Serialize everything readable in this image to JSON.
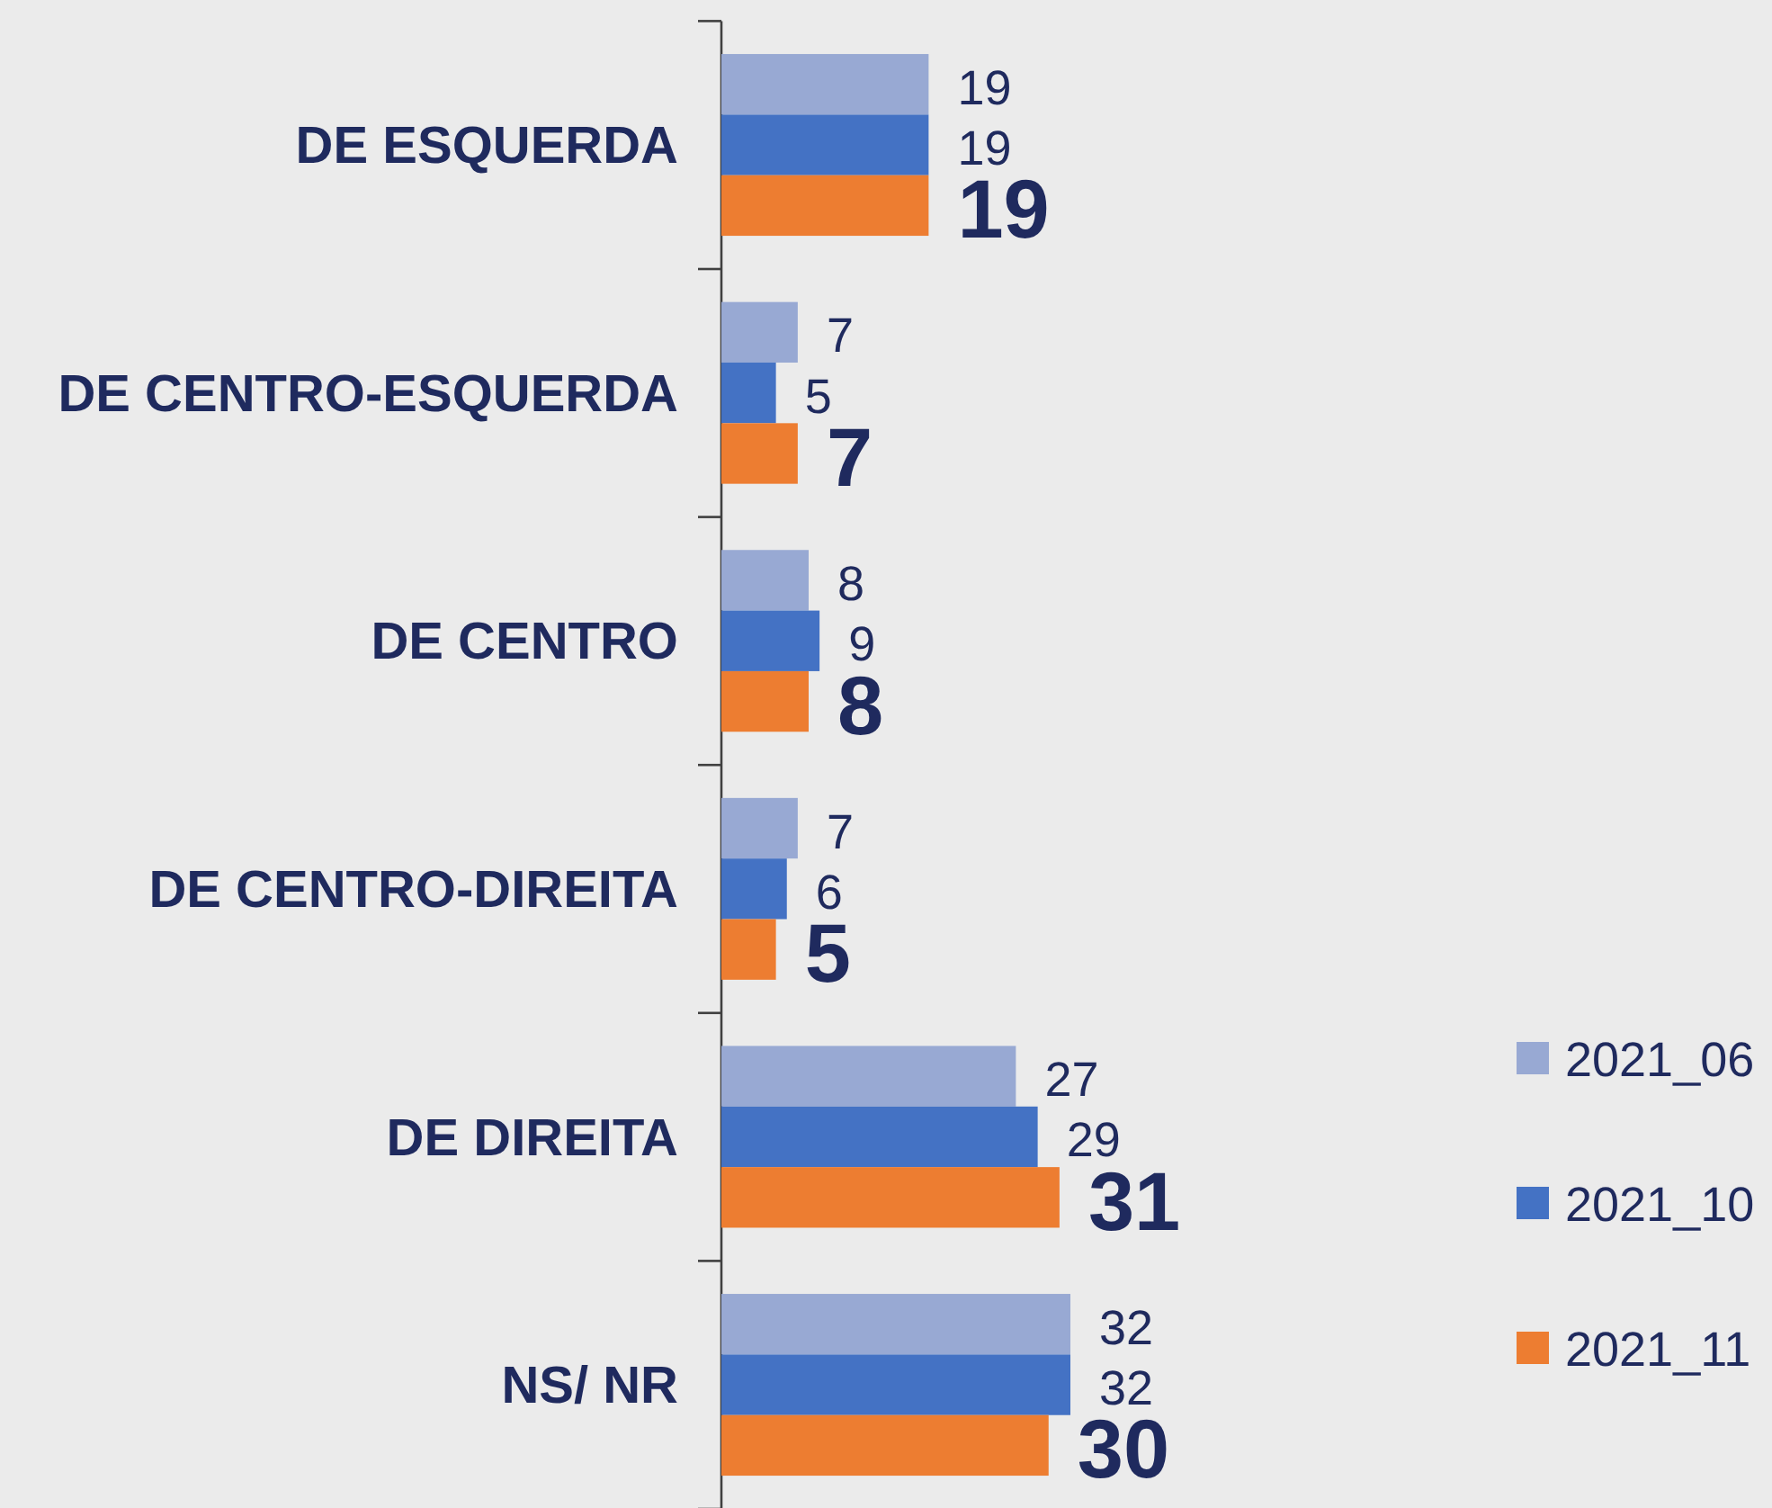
{
  "chart_data": {
    "type": "bar",
    "orientation": "horizontal",
    "categories": [
      "DE ESQUERDA",
      "DE CENTRO-ESQUERDA",
      "DE CENTRO",
      "DE CENTRO-DIREITA",
      "DE DIREITA",
      "NS/ NR"
    ],
    "series": [
      {
        "name": "2021_06",
        "color": "#98a9d3",
        "values": [
          19,
          7,
          8,
          7,
          27,
          32
        ]
      },
      {
        "name": "2021_10",
        "color": "#4472c4",
        "values": [
          19,
          5,
          9,
          6,
          29,
          32
        ]
      },
      {
        "name": "2021_11",
        "color": "#ed7d31",
        "values": [
          19,
          7,
          8,
          5,
          31,
          30
        ]
      }
    ],
    "data_labels": true,
    "legend": "right",
    "tick_labels": "y"
  }
}
